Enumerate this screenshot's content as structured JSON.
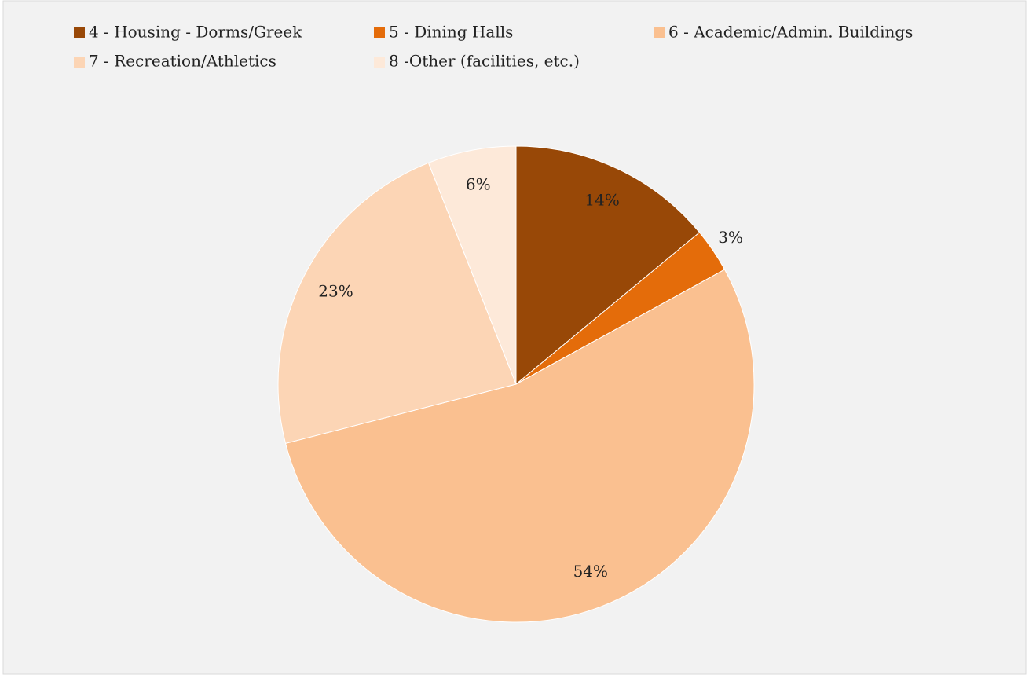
{
  "chart_data": {
    "type": "pie",
    "categories": [
      "4 - Housing - Dorms/Greek",
      "5 - Dining Halls",
      "6 - Academic/Admin. Buildings",
      "7 - Recreation/Athletics",
      "8 -Other (facilities, etc.)"
    ],
    "values": [
      14,
      3,
      54,
      23,
      6
    ],
    "value_labels": [
      "14%",
      "3%",
      "54%",
      "23%",
      "6%"
    ],
    "colors": [
      "#984807",
      "#e46c0a",
      "#fac090",
      "#fcd5b5",
      "#fde9d9"
    ],
    "legend": "top"
  }
}
